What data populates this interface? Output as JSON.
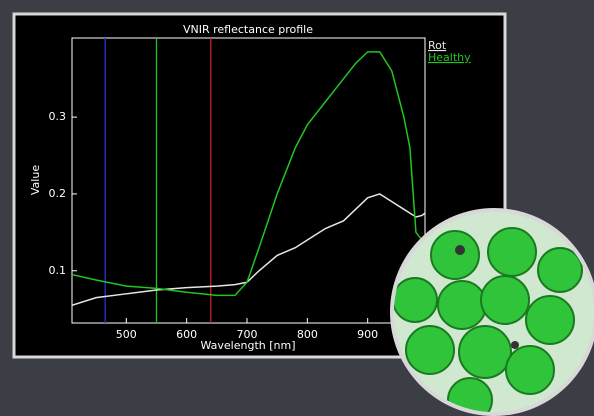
{
  "chart_data": {
    "type": "line",
    "title": "VNIR reflectance profile",
    "x_label": "Wavelength [nm]",
    "y_label": "Value",
    "x": [
      410,
      450,
      500,
      550,
      600,
      650,
      680,
      700,
      720,
      750,
      780,
      800,
      830,
      860,
      880,
      900,
      920,
      940,
      960,
      970,
      980,
      990,
      995
    ],
    "series": [
      {
        "name": "Rot",
        "color": "#e6e6e6",
        "values": [
          0.055,
          0.065,
          0.07,
          0.075,
          0.078,
          0.08,
          0.082,
          0.085,
          0.1,
          0.12,
          0.13,
          0.14,
          0.155,
          0.165,
          0.18,
          0.195,
          0.2,
          0.19,
          0.18,
          0.175,
          0.17,
          0.172,
          0.175
        ]
      },
      {
        "name": "Healthy",
        "color": "#22c422",
        "values": [
          0.095,
          0.088,
          0.08,
          0.077,
          0.072,
          0.068,
          0.068,
          0.085,
          0.13,
          0.2,
          0.26,
          0.29,
          0.32,
          0.35,
          0.37,
          0.385,
          0.385,
          0.36,
          0.3,
          0.26,
          0.15,
          0.14,
          0.145
        ]
      }
    ],
    "markers": [
      {
        "x": 465,
        "color": "#2233dd"
      },
      {
        "x": 550,
        "color": "#22c422"
      },
      {
        "x": 640,
        "color": "#cc2222"
      }
    ],
    "xlim": [
      410,
      995
    ],
    "ylim": [
      0.032,
      0.403
    ],
    "xticks": [
      500,
      600,
      700,
      800,
      900
    ],
    "yticks": [
      0.1,
      0.2,
      0.3
    ],
    "legend": "top-right"
  }
}
